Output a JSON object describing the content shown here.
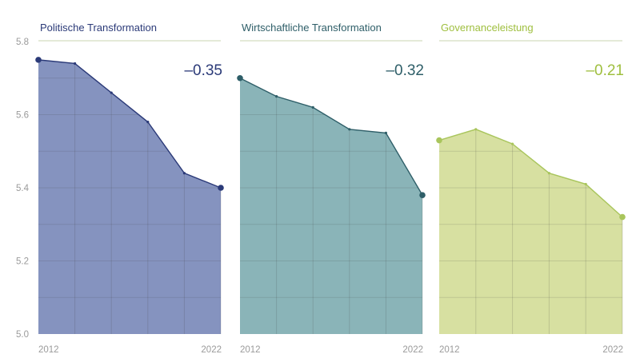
{
  "chart_data": {
    "type": "area",
    "ylim": [
      5.0,
      5.8
    ],
    "y_ticks": [
      "5.0",
      "5.2",
      "5.4",
      "5.6",
      "5.8"
    ],
    "x_start_label": "2012",
    "x_end_label": "2022",
    "panels": [
      {
        "title": "Politische Transformation",
        "change": "–0.35",
        "x": [
          2012,
          2014,
          2016,
          2018,
          2020,
          2022
        ],
        "values": [
          5.75,
          5.74,
          5.66,
          5.58,
          5.44,
          5.4
        ],
        "fill_color": "#8593bf",
        "line_color": "#2b3a78",
        "title_color": "#2b3a78",
        "change_color": "#2b3a78"
      },
      {
        "title": "Wirtschaftliche Transformation",
        "change": "–0.32",
        "x": [
          2012,
          2014,
          2016,
          2018,
          2020,
          2022
        ],
        "values": [
          5.7,
          5.65,
          5.62,
          5.56,
          5.55,
          5.38
        ],
        "fill_color": "#8ab4b8",
        "line_color": "#2e5e68",
        "title_color": "#2e5e68",
        "change_color": "#2e5e68"
      },
      {
        "title": "Governanceleistung",
        "change": "–0.21",
        "x": [
          2012,
          2014,
          2016,
          2018,
          2020,
          2022
        ],
        "values": [
          5.53,
          5.56,
          5.52,
          5.44,
          5.41,
          5.32
        ],
        "fill_color": "#d7e0a1",
        "line_color": "#a9c55c",
        "title_color": "#9fbf3f",
        "change_color": "#9fbf3f"
      }
    ]
  }
}
